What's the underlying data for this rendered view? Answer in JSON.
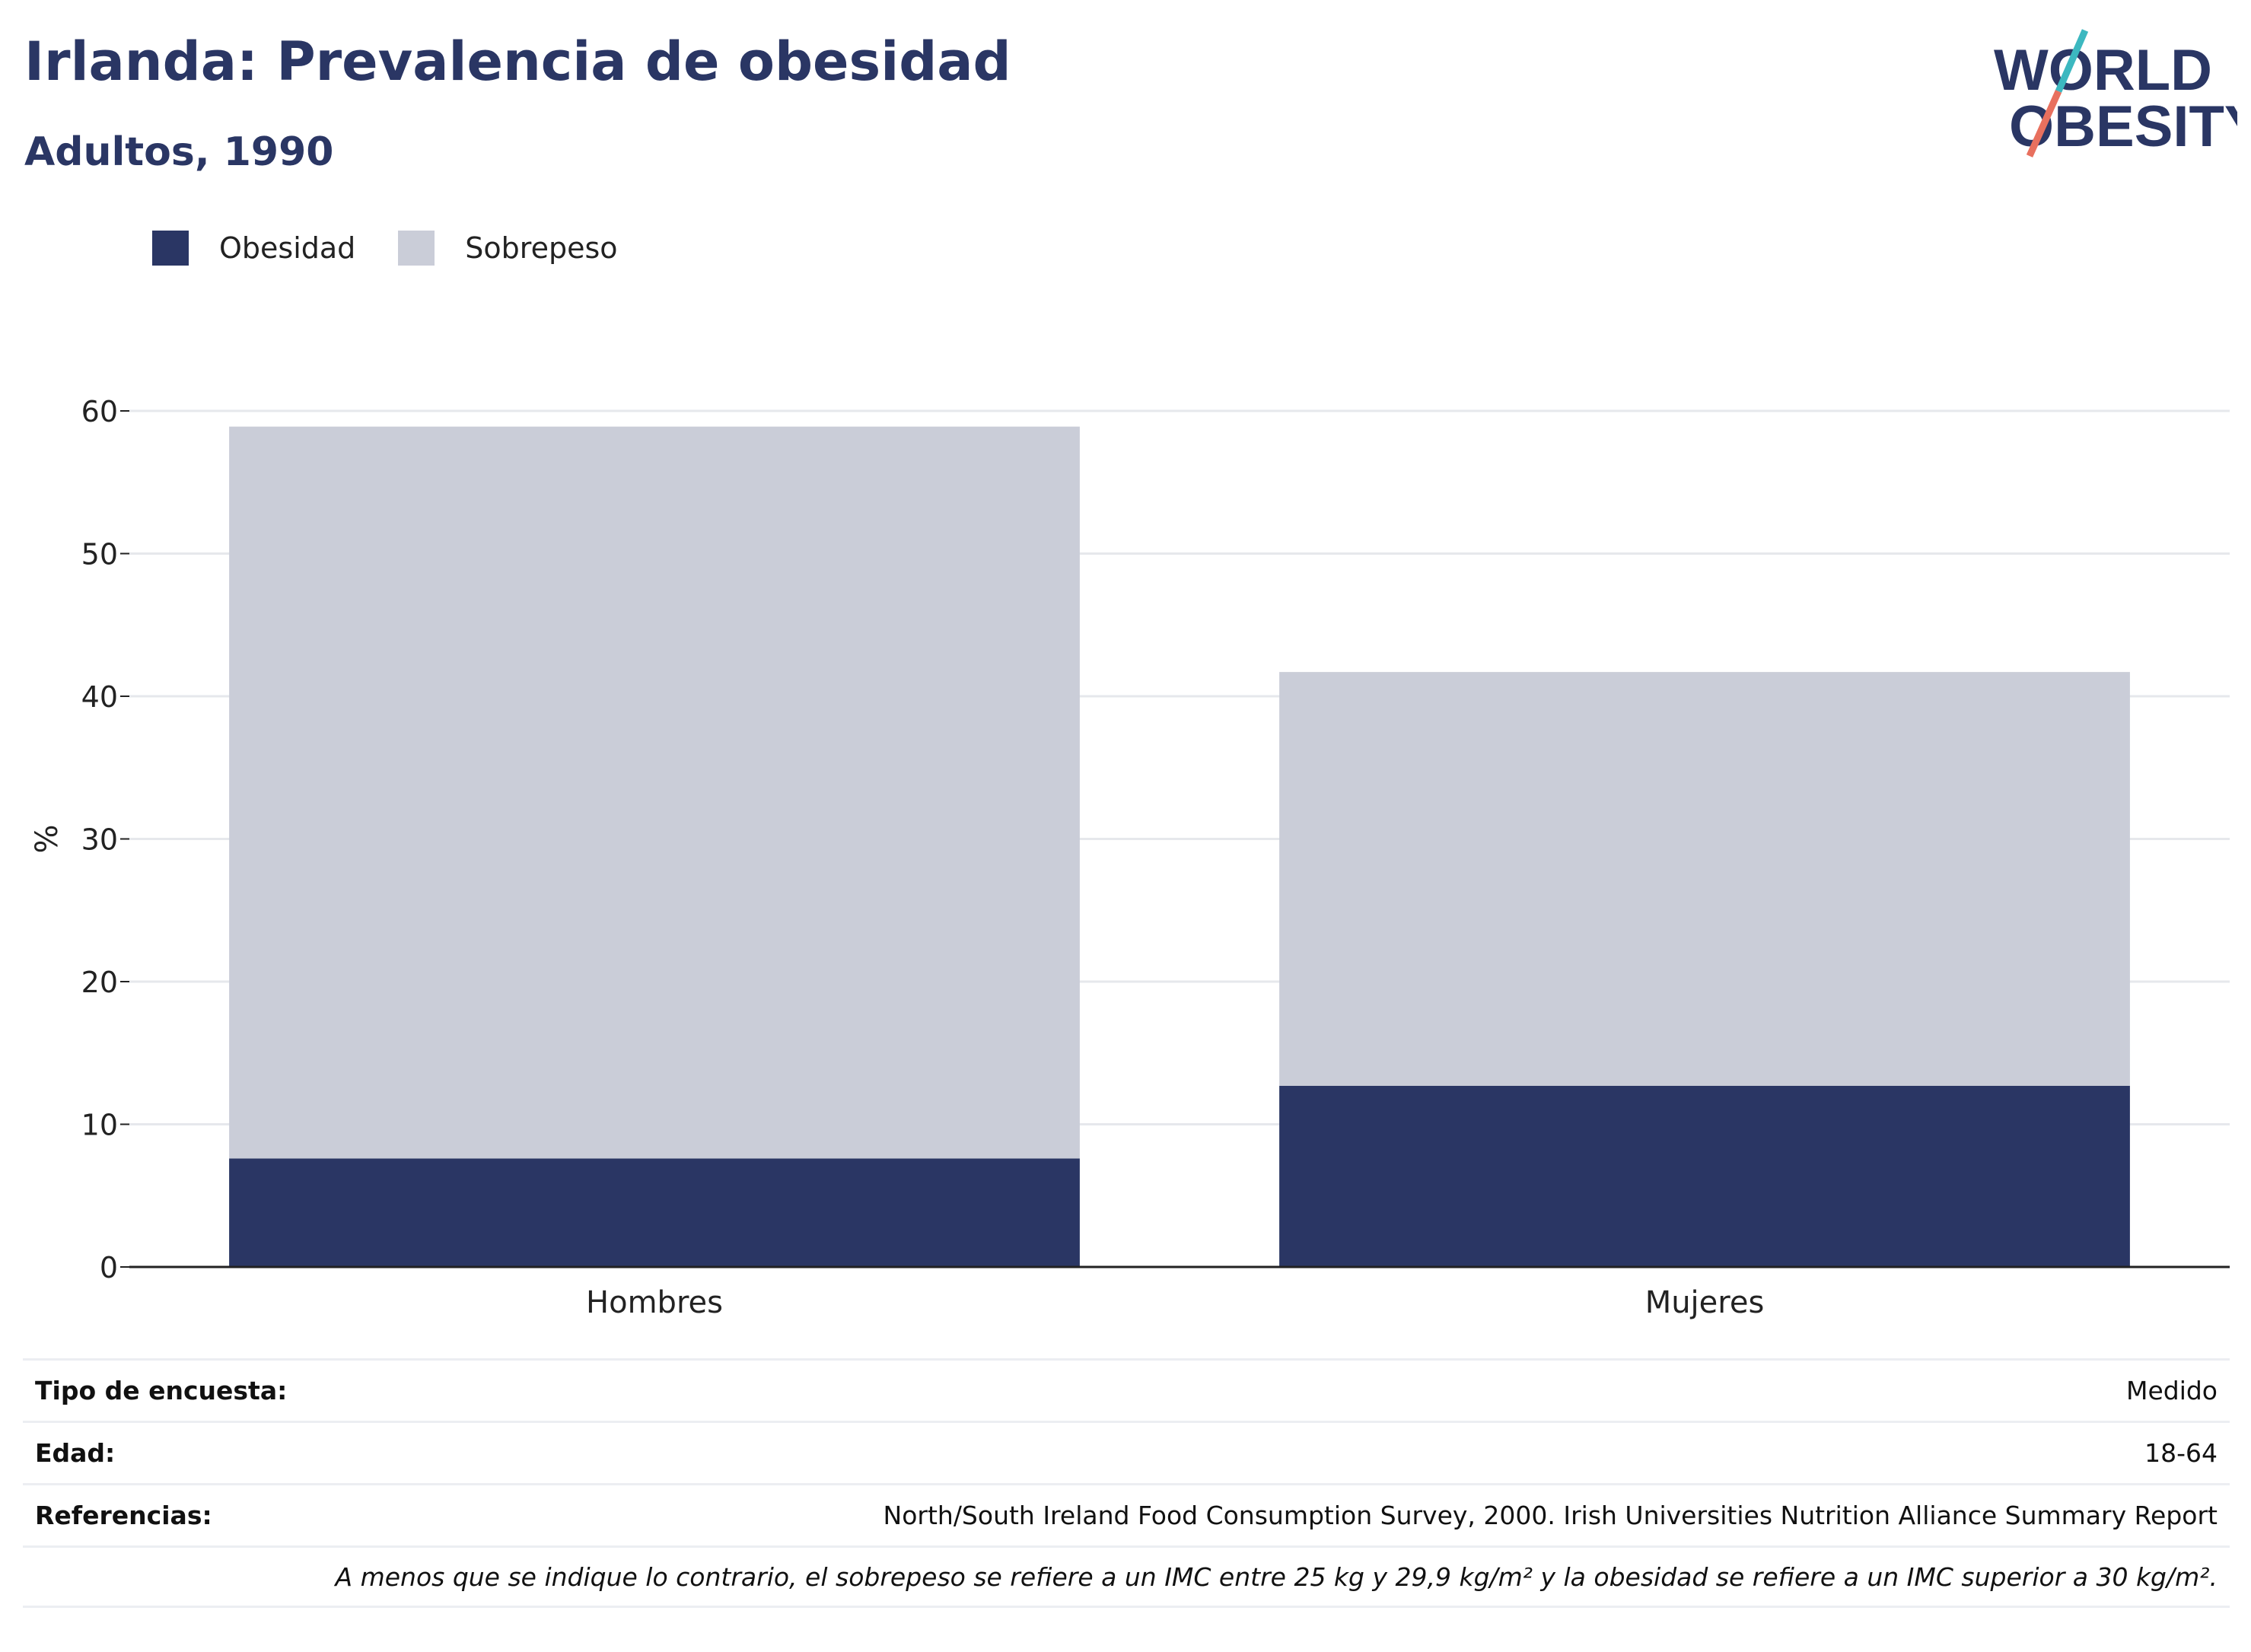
{
  "header": {
    "title": "Irlanda: Prevalencia de obesidad",
    "subtitle": "Adultos, 1990"
  },
  "logo": {
    "line1": "WORLD",
    "line2": "OBESITY"
  },
  "colors": {
    "obesity": "#2a3664",
    "overweight": "#cacdd8",
    "accent_teal": "#3cb8c0",
    "accent_coral": "#e8705e"
  },
  "chart_data": {
    "type": "bar",
    "stacked": true,
    "categories": [
      "Hombres",
      "Mujeres"
    ],
    "series": [
      {
        "name": "Obesidad",
        "values": [
          7.6,
          12.7
        ],
        "color": "#2a3664"
      },
      {
        "name": "Sobrepeso",
        "values": [
          51.3,
          29.0
        ],
        "color": "#cacdd8"
      }
    ],
    "ylabel": "%",
    "xlabel": "",
    "ylim": [
      0,
      60
    ],
    "yticks": [
      0,
      10,
      20,
      30,
      40,
      50,
      60
    ],
    "grid": true,
    "legend_position": "top-left"
  },
  "meta": {
    "rows": [
      {
        "key": "Tipo de encuesta:",
        "value": "Medido"
      },
      {
        "key": "Edad:",
        "value": "18-64"
      },
      {
        "key": "Referencias:",
        "value": "North/South Ireland Food Consumption Survey, 2000. Irish Universities Nutrition Alliance Summary Report"
      }
    ],
    "note": "A menos que se indique lo contrario, el sobrepeso se refiere a un IMC entre 25 kg y 29,9 kg/m² y la obesidad se refiere a un IMC superior a 30 kg/m²."
  }
}
